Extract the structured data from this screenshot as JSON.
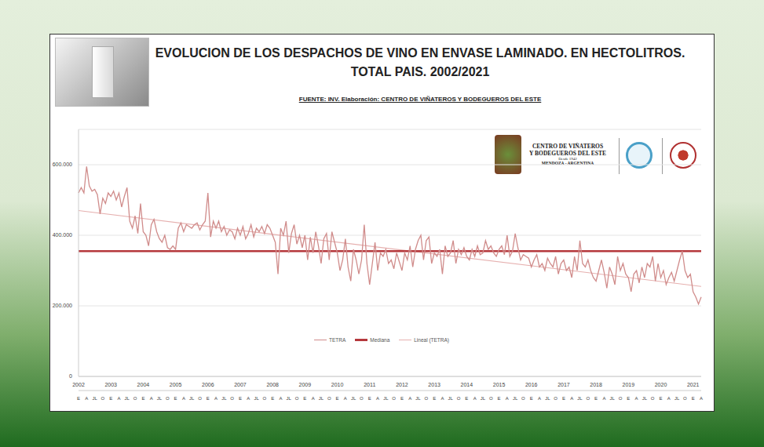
{
  "chart_data": {
    "type": "line",
    "title": "EVOLUCION DE LOS DESPACHOS DE VINO EN ENVASE LAMINADO. EN HECTOLITROS.",
    "subtitle": "TOTAL PAIS. 2002/2021",
    "source": "FUENTE: INV. Elaboración: CENTRO DE VIÑATEROS Y BODEGUEROS DEL ESTE",
    "logo": {
      "name_line1": "CENTRO DE VIÑATEROS",
      "name_line2": "Y BODEGUEROS DEL ESTE",
      "since": "Desde 1942",
      "place": "MENDOZA - ARGENTINA"
    },
    "categories": [
      "E",
      null,
      null,
      "A",
      null,
      null,
      "JL",
      null,
      null,
      "O",
      null,
      null,
      "E",
      null,
      null,
      "A",
      null,
      null,
      "JL",
      null,
      null,
      "O",
      null,
      null,
      "E",
      null,
      null,
      "A",
      null,
      null,
      "JL",
      null,
      null,
      "O",
      null,
      null,
      "E",
      null,
      null,
      "A",
      null,
      null,
      "JL",
      null,
      null,
      "O",
      null,
      null,
      "E",
      null,
      null,
      "A",
      null,
      null,
      "JL",
      null,
      null,
      "O",
      null,
      null,
      "E",
      null,
      null,
      "A",
      null,
      null,
      "JL",
      null,
      null,
      "O",
      null,
      null,
      "E",
      null,
      null,
      "A",
      null,
      null,
      "JL",
      null,
      null,
      "O",
      null,
      null,
      "E",
      null,
      null,
      "A",
      null,
      null,
      "JL",
      null,
      null,
      "O",
      null,
      null,
      "E",
      null,
      null,
      "A",
      null,
      null,
      "JL",
      null,
      null,
      "O",
      null,
      null,
      "E",
      null,
      null,
      "A",
      null,
      null,
      "JL",
      null,
      null,
      "O",
      null,
      null,
      "E",
      null,
      null,
      "A",
      null,
      null,
      "JL",
      null,
      null,
      "O",
      null,
      null,
      "E",
      null,
      null,
      "A",
      null,
      null,
      "JL",
      null,
      null,
      "O",
      null,
      null,
      "E",
      null,
      null,
      "A",
      null,
      null,
      "JL",
      null,
      null,
      "O",
      null,
      null,
      "E",
      null,
      null,
      "A",
      null,
      null,
      "JL",
      null,
      null,
      "O",
      null,
      null,
      "E",
      null,
      null,
      "A",
      null,
      null,
      "JL",
      null,
      null,
      "O",
      null,
      null,
      "E",
      null,
      null,
      "A",
      null,
      null,
      "JL",
      null,
      null,
      "O",
      null,
      null,
      "E",
      null,
      null,
      "A",
      null,
      null,
      "JL",
      null,
      null,
      "O",
      null,
      null,
      "E",
      null,
      null,
      "A",
      null,
      null,
      "JL",
      null,
      null,
      "O",
      null,
      null,
      "E",
      null,
      null,
      "A",
      null,
      null,
      "JL",
      null,
      null,
      "O",
      null,
      null,
      "E",
      null,
      null,
      "A"
    ],
    "year_labels": [
      "2002",
      null,
      null,
      null,
      null,
      null,
      null,
      null,
      null,
      null,
      null,
      null,
      "2003",
      null,
      null,
      null,
      null,
      null,
      null,
      null,
      null,
      null,
      null,
      null,
      "2004",
      null,
      null,
      null,
      null,
      null,
      null,
      null,
      null,
      null,
      null,
      null,
      "2005",
      null,
      null,
      null,
      null,
      null,
      null,
      null,
      null,
      null,
      null,
      null,
      "2006",
      null,
      null,
      null,
      null,
      null,
      null,
      null,
      null,
      null,
      null,
      null,
      "2007",
      null,
      null,
      null,
      null,
      null,
      null,
      null,
      null,
      null,
      null,
      null,
      "2008",
      null,
      null,
      null,
      null,
      null,
      null,
      null,
      null,
      null,
      null,
      null,
      "2009",
      null,
      null,
      null,
      null,
      null,
      null,
      null,
      null,
      null,
      null,
      null,
      "2010",
      null,
      null,
      null,
      null,
      null,
      null,
      null,
      null,
      null,
      null,
      null,
      "2011",
      null,
      null,
      null,
      null,
      null,
      null,
      null,
      null,
      null,
      null,
      null,
      "2012",
      null,
      null,
      null,
      null,
      null,
      null,
      null,
      null,
      null,
      null,
      null,
      "2013",
      null,
      null,
      null,
      null,
      null,
      null,
      null,
      null,
      null,
      null,
      null,
      "2014",
      null,
      null,
      null,
      null,
      null,
      null,
      null,
      null,
      null,
      null,
      null,
      "2015",
      null,
      null,
      null,
      null,
      null,
      null,
      null,
      null,
      null,
      null,
      null,
      "2016",
      null,
      null,
      null,
      null,
      null,
      null,
      null,
      null,
      null,
      null,
      null,
      "2017",
      null,
      null,
      null,
      null,
      null,
      null,
      null,
      null,
      null,
      null,
      null,
      "2018",
      null,
      null,
      null,
      null,
      null,
      null,
      null,
      null,
      null,
      null,
      null,
      "2019",
      null,
      null,
      null,
      null,
      null,
      null,
      null,
      null,
      null,
      null,
      null,
      "2020",
      null,
      null,
      null,
      null,
      null,
      null,
      null,
      null,
      null,
      null,
      null,
      "2021",
      null,
      null,
      null
    ],
    "series": [
      {
        "name": "TETRA",
        "color": "#d08c8b",
        "values": [
          520000,
          535000,
          520000,
          595000,
          540000,
          525000,
          530000,
          515000,
          460000,
          505000,
          490000,
          520000,
          510000,
          525000,
          500000,
          520000,
          480000,
          510000,
          535000,
          440000,
          420000,
          455000,
          405000,
          490000,
          410000,
          400000,
          370000,
          430000,
          445000,
          410000,
          390000,
          380000,
          400000,
          365000,
          360000,
          370000,
          360000,
          420000,
          435000,
          410000,
          430000,
          425000,
          420000,
          430000,
          435000,
          415000,
          430000,
          440000,
          520000,
          395000,
          440000,
          420000,
          440000,
          410000,
          425000,
          400000,
          415000,
          410000,
          390000,
          420000,
          400000,
          425000,
          390000,
          405000,
          430000,
          395000,
          420000,
          410000,
          425000,
          405000,
          430000,
          420000,
          400000,
          380000,
          290000,
          420000,
          400000,
          440000,
          350000,
          405000,
          430000,
          375000,
          400000,
          365000,
          400000,
          330000,
          395000,
          350000,
          410000,
          370000,
          320000,
          390000,
          405000,
          330000,
          410000,
          380000,
          350000,
          300000,
          330000,
          390000,
          310000,
          270000,
          360000,
          330000,
          290000,
          330000,
          430000,
          320000,
          260000,
          320000,
          380000,
          300000,
          350000,
          340000,
          360000,
          320000,
          330000,
          305000,
          350000,
          325000,
          300000,
          350000,
          330000,
          370000,
          310000,
          360000,
          385000,
          400000,
          330000,
          385000,
          395000,
          320000,
          350000,
          340000,
          360000,
          290000,
          370000,
          340000,
          350000,
          385000,
          320000,
          360000,
          345000,
          365000,
          340000,
          330000,
          360000,
          340000,
          370000,
          345000,
          350000,
          385000,
          360000,
          370000,
          350000,
          340000,
          360000,
          370000,
          345000,
          400000,
          340000,
          355000,
          405000,
          365000,
          330000,
          345000,
          340000,
          335000,
          310000,
          330000,
          345000,
          310000,
          320000,
          300000,
          335000,
          320000,
          310000,
          340000,
          290000,
          320000,
          330000,
          300000,
          310000,
          280000,
          340000,
          300000,
          385000,
          320000,
          310000,
          330000,
          300000,
          280000,
          270000,
          300000,
          330000,
          295000,
          250000,
          310000,
          290000,
          260000,
          340000,
          300000,
          320000,
          290000,
          280000,
          240000,
          290000,
          300000,
          265000,
          310000,
          280000,
          320000,
          310000,
          340000,
          270000,
          320000,
          280000,
          300000,
          260000,
          280000,
          295000,
          270000,
          300000,
          330000,
          355000,
          300000,
          280000,
          290000,
          240000,
          225000,
          205000,
          225000
        ]
      },
      {
        "name": "Mediana",
        "type": "median",
        "color": "#b5383c",
        "value": 355000
      },
      {
        "name": "Lineal (TETRA)",
        "type": "trend",
        "color": "#e6b0af",
        "start": 470000,
        "end": 255000
      }
    ],
    "ylim": [
      0,
      700000
    ],
    "yticks": [
      0,
      {
        "value": 200000,
        "label": "200.000"
      },
      {
        "value": 400000,
        "label": "400.000"
      },
      {
        "value": 600000,
        "label": "600.000"
      }
    ],
    "grid": true,
    "legend": "bottom"
  }
}
